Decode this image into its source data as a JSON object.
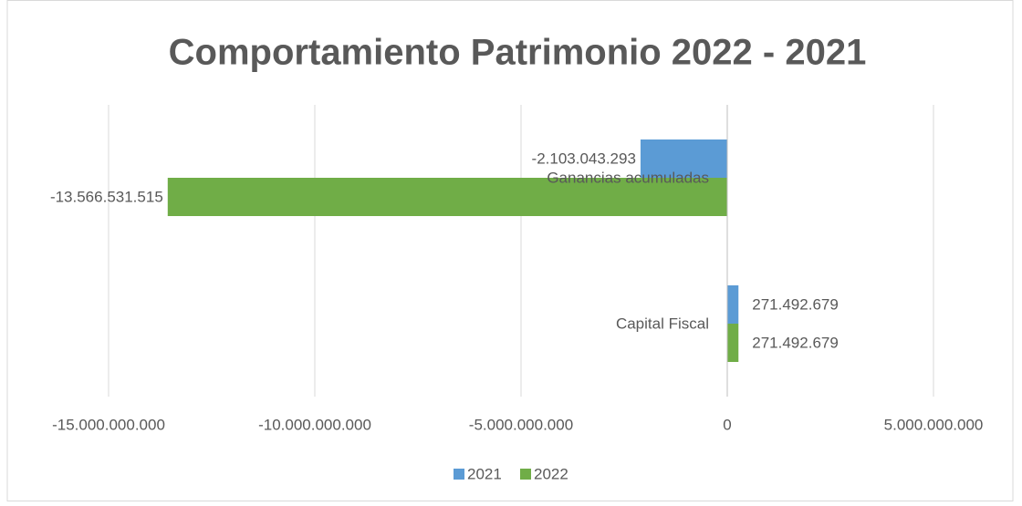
{
  "chart_data": {
    "type": "bar",
    "orientation": "horizontal",
    "title": "Comportamiento Patrimonio 2022 - 2021",
    "categories": [
      "Ganancias acumuladas",
      "Capital Fiscal"
    ],
    "series": [
      {
        "name": "2021",
        "color": "#5b9bd5",
        "values": [
          -2103043293,
          271492679
        ],
        "value_labels": [
          "-2.103.043.293",
          "271.492.679"
        ]
      },
      {
        "name": "2022",
        "color": "#70ad47",
        "values": [
          -13566531515,
          271492679
        ],
        "value_labels": [
          "-13.566.531.515",
          "271.492.679"
        ]
      }
    ],
    "xlim": [
      -15000000000,
      5000000000
    ],
    "xticks": [
      {
        "value": -15000000000,
        "label": "-15.000.000.000"
      },
      {
        "value": -10000000000,
        "label": "-10.000.000.000"
      },
      {
        "value": -5000000000,
        "label": "-5.000.000.000"
      },
      0,
      {
        "value": 5000000000,
        "label": "5.000.000.000"
      }
    ],
    "grid": true,
    "legend": "bottom"
  }
}
